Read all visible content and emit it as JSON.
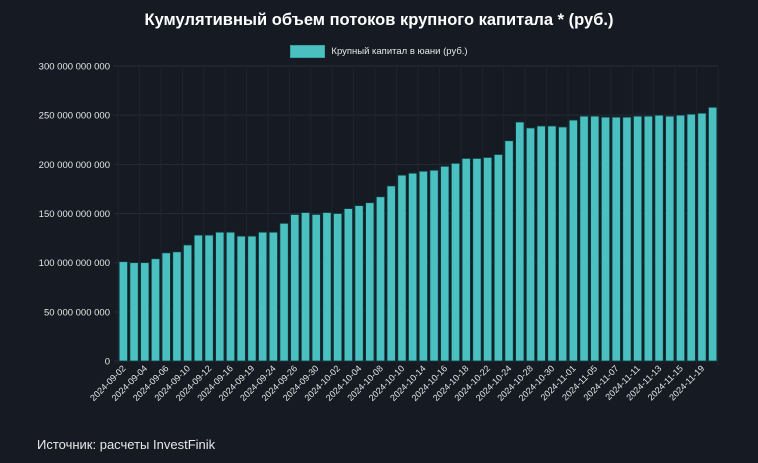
{
  "chart_data": {
    "type": "bar",
    "title": "Кумулятивный объем потоков крупного капитала * (руб.)",
    "xlabel": "",
    "ylabel": "",
    "ylim": [
      0,
      300000000000
    ],
    "y_ticks": [
      "0",
      "50 000 000 000",
      "100 000 000 000",
      "150 000 000 000",
      "200 000 000 000",
      "250 000 000 000",
      "300 000 000 000"
    ],
    "y_tick_values": [
      0,
      50000000000,
      100000000000,
      150000000000,
      200000000000,
      250000000000,
      300000000000
    ],
    "x_tick_labels": [
      "2024-09-02",
      "2024-09-04",
      "2024-09-06",
      "2024-09-10",
      "2024-09-12",
      "2024-09-16",
      "2024-09-19",
      "2024-09-24",
      "2024-09-26",
      "2024-09-30",
      "2024-10-02",
      "2024-10-04",
      "2024-10-08",
      "2024-10-10",
      "2024-10-14",
      "2024-10-16",
      "2024-10-18",
      "2024-10-22",
      "2024-10-24",
      "2024-10-28",
      "2024-10-30",
      "2024-11-01",
      "2024-11-05",
      "2024-11-07",
      "2024-11-11",
      "2024-11-13",
      "2024-11-15",
      "2024-11-19"
    ],
    "x_tick_every": 2,
    "grid": true,
    "legend_position": "top",
    "series": [
      {
        "name": "Крупный капитал в юани (руб.)",
        "color": "#4bc0c0",
        "values": [
          101000000000.0,
          100000000000.0,
          100000000000.0,
          104000000000.0,
          110000000000.0,
          111000000000.0,
          118000000000.0,
          128000000000.0,
          128000000000.0,
          131000000000.0,
          131000000000.0,
          127000000000.0,
          127000000000.0,
          131000000000.0,
          131000000000.0,
          140000000000.0,
          149000000000.0,
          151000000000.0,
          149000000000.0,
          151000000000.0,
          150000000000.0,
          155000000000.0,
          158000000000.0,
          161000000000.0,
          167000000000.0,
          178000000000.0,
          189000000000.0,
          191000000000.0,
          193000000000.0,
          194000000000.0,
          198000000000.0,
          201000000000.0,
          206000000000.0,
          206000000000.0,
          207000000000.0,
          210000000000.0,
          224000000000.0,
          243000000000.0,
          237000000000.0,
          239000000000.0,
          239000000000.0,
          238000000000.0,
          245000000000.0,
          249000000000.0,
          249000000000.0,
          248000000000.0,
          248000000000.0,
          248000000000.0,
          249000000000.0,
          249000000000.0,
          250000000000.0,
          249000000000.0,
          250000000000.0,
          251000000000.0,
          252000000000.0,
          258000000000.0
        ]
      }
    ]
  },
  "footer": {
    "source": "Источник: расчеты InvestFinik"
  }
}
